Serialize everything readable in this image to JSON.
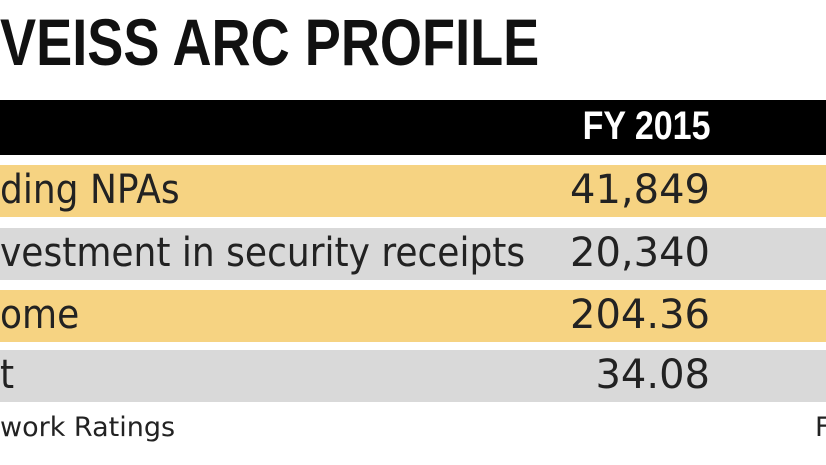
{
  "title": "VEISS ARC PROFILE",
  "table": {
    "header": [
      "",
      "FY 2015"
    ],
    "rows": [
      [
        "ding NPAs",
        "41,849"
      ],
      [
        "vestment in security receipts",
        "20,340"
      ],
      [
        "ome",
        "204.36"
      ],
      [
        "t",
        "34.08"
      ]
    ]
  },
  "footer": {
    "source": "work Ratings",
    "right": "F"
  }
}
